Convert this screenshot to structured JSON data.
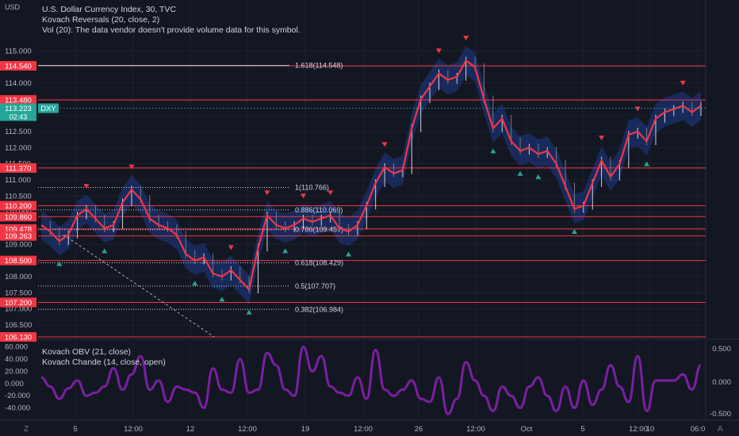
{
  "legend": {
    "currency": "USD",
    "title": "U.S. Dollar Currency Index, 30, TVC",
    "indicator1": "Kovach Reversals (20, close, 2)",
    "indicator2": "Vol (20): The data vendor doesn't provide volume data for this symbol."
  },
  "sub_legend": {
    "indicator1": "Kovach OBV (21, close)",
    "indicator2": "Kovach Chande (14, close, open)"
  },
  "price_badges": [
    {
      "label": "114.540",
      "value": 114.54,
      "color": "#f23645"
    },
    {
      "label": "113.480",
      "value": 113.48,
      "color": "#f23645"
    },
    {
      "label": "111.370",
      "value": 111.37,
      "color": "#f23645"
    },
    {
      "label": "110.200",
      "value": 110.2,
      "color": "#f23645"
    },
    {
      "label": "109.860",
      "value": 109.86,
      "color": "#f23645"
    },
    {
      "label": "109.478",
      "value": 109.478,
      "color": "#f23645"
    },
    {
      "label": "109.263",
      "value": 109.263,
      "color": "#f23645"
    },
    {
      "label": "108.500",
      "value": 108.5,
      "color": "#f23645"
    },
    {
      "label": "107.200",
      "value": 107.2,
      "color": "#f23645"
    },
    {
      "label": "106.130",
      "value": 106.13,
      "color": "#f23645"
    }
  ],
  "current_price": {
    "value": 113.223,
    "label": "113.223",
    "countdown": "02:43",
    "symbol": "DXY",
    "color": "#26a69a"
  },
  "fib_levels": [
    {
      "label": "1.618(114.548)",
      "value": 114.548,
      "style": "solid"
    },
    {
      "label": "1(110.766)",
      "value": 110.766,
      "style": "dotted"
    },
    {
      "label": "0.886(110.069)",
      "value": 110.069,
      "style": "dotted"
    },
    {
      "label": "0.786(109.457)",
      "value": 109.457,
      "style": "dotted"
    },
    {
      "label": "0.618(108.429)",
      "value": 108.429,
      "style": "dotted"
    },
    {
      "label": "0.5(107.707)",
      "value": 107.707,
      "style": "dotted"
    },
    {
      "label": "0.382(106.984)",
      "value": 106.984,
      "style": "dotted"
    }
  ],
  "buttons": {
    "zoom": "Z",
    "auto": "A"
  },
  "chart_data": {
    "type": "line",
    "symbol": "DXY",
    "main_y_ticks": [
      "115.000",
      "114.500",
      "114.000",
      "113.500",
      "113.000",
      "112.500",
      "112.000",
      "111.500",
      "111.000",
      "110.500",
      "110.000",
      "109.500",
      "109.000",
      "108.500",
      "108.000",
      "107.500",
      "107.000",
      "106.500"
    ],
    "main_ylim": [
      106.13,
      115.4
    ],
    "sub_left_ticks": [
      "60.000",
      "40.000",
      "20.000",
      "0.000",
      "-20.000",
      "-40.000"
    ],
    "sub_right_ticks": [
      "0.500",
      "0.000",
      "-0.500"
    ],
    "x_ticks": [
      "5",
      "12:00",
      "12",
      "12:00",
      "19",
      "12:00",
      "26",
      "12:00",
      "Oct",
      "5",
      "12:00",
      "10",
      "06:0"
    ],
    "series": [
      {
        "values": [
          109.6,
          109.4,
          109.1,
          109.3,
          109.9,
          110.1,
          109.8,
          109.5,
          109.6,
          110.3,
          110.7,
          110.4,
          109.8,
          109.6,
          109.5,
          109.3,
          108.7,
          108.5,
          108.6,
          108.1,
          108.0,
          108.2,
          107.9,
          107.6,
          108.9,
          109.9,
          109.6,
          109.5,
          109.6,
          109.8,
          109.7,
          109.8,
          109.9,
          109.5,
          109.4,
          109.6,
          110.2,
          110.9,
          111.4,
          111.2,
          111.3,
          112.6,
          113.5,
          113.9,
          114.3,
          114.1,
          114.2,
          114.7,
          114.5,
          113.5,
          112.6,
          112.9,
          112.2,
          111.9,
          112.0,
          111.8,
          111.9,
          111.5,
          110.8,
          110.1,
          110.2,
          110.9,
          111.6,
          111.1,
          111.5,
          112.4,
          112.5,
          112.2,
          112.9,
          113.1,
          113.2,
          113.3,
          113.1,
          113.3
        ]
      }
    ],
    "sub_series": [
      {
        "values": [
          10,
          -5,
          -25,
          -8,
          5,
          -20,
          -15,
          -5,
          25,
          -10,
          15,
          45,
          -10,
          5,
          -30,
          -5,
          -10,
          -15,
          -40,
          25,
          -10,
          -15,
          40,
          -15,
          -10,
          50,
          30,
          -10,
          -20,
          60,
          20,
          45,
          -5,
          -15,
          -20,
          10,
          -25,
          55,
          -10,
          -20,
          -10,
          5,
          -25,
          -30,
          10,
          -50,
          -25,
          35,
          5,
          -20,
          -45,
          -5,
          -20,
          -40,
          -5,
          10,
          -20,
          -45,
          -5,
          -40,
          5,
          -35,
          -10,
          30,
          -5,
          -30,
          45,
          -45,
          5,
          5,
          5,
          15,
          -10,
          30
        ]
      }
    ]
  }
}
